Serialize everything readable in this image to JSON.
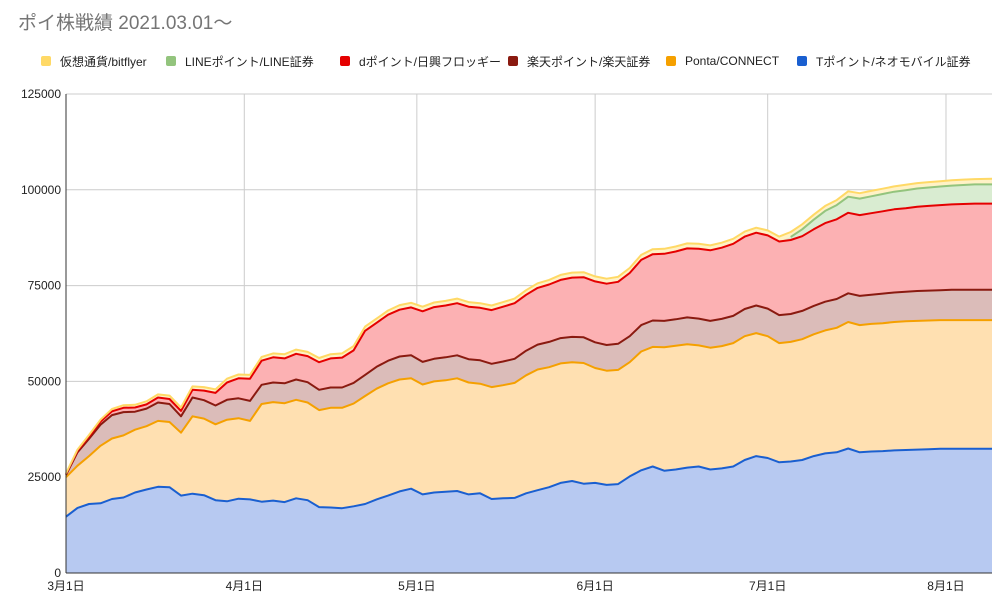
{
  "chart_data": {
    "type": "area",
    "stacked": true,
    "title": "ポイ株戦績 2021.03.01～",
    "xlabel": "",
    "ylabel": "",
    "ylim": [
      0,
      125000
    ],
    "yticks": [
      0,
      25000,
      50000,
      75000,
      100000,
      125000
    ],
    "yticklabels": [
      "0",
      "25000",
      "50000",
      "75000",
      "100000",
      "125000"
    ],
    "xticks": [
      "3月1日",
      "4月1日",
      "5月1日",
      "6月1日",
      "7月1日",
      "8月1日"
    ],
    "x_range_days": [
      0,
      161
    ],
    "x_tick_days": [
      0,
      31,
      61,
      92,
      122,
      153
    ],
    "grid": true,
    "legend_position": "top",
    "x_days": [
      0,
      2,
      4,
      6,
      8,
      10,
      12,
      14,
      16,
      18,
      20,
      22,
      24,
      26,
      28,
      30,
      32,
      34,
      36,
      38,
      40,
      42,
      44,
      46,
      48,
      50,
      52,
      54,
      56,
      58,
      60,
      62,
      64,
      66,
      68,
      70,
      72,
      74,
      76,
      78,
      80,
      82,
      84,
      86,
      88,
      90,
      92,
      94,
      96,
      98,
      100,
      102,
      104,
      106,
      108,
      110,
      112,
      114,
      116,
      118,
      120,
      122,
      124,
      126,
      128,
      130,
      132,
      134,
      136,
      138,
      140,
      142,
      144,
      146,
      148,
      150,
      152,
      154,
      156,
      158,
      161
    ],
    "series": [
      {
        "name": "Tポイント/ネオモバイル証券",
        "color": "#1a5fd0",
        "fill": "#b7c9f1",
        "values": [
          14700,
          17000,
          18000,
          18200,
          19300,
          19700,
          21000,
          21800,
          22500,
          22400,
          20200,
          20700,
          20300,
          19000,
          18700,
          19400,
          19200,
          18600,
          18900,
          18500,
          19500,
          19000,
          17200,
          17100,
          16900,
          17400,
          18000,
          19200,
          20200,
          21300,
          22000,
          20500,
          21000,
          21200,
          21400,
          20500,
          20800,
          19300,
          19500,
          19600,
          20800,
          21600,
          22400,
          23500,
          24000,
          23300,
          23500,
          23000,
          23200,
          25200,
          26800,
          27800,
          26700,
          27000,
          27500,
          27800,
          27000,
          27300,
          27800,
          29500,
          30500,
          30000,
          28900,
          29100,
          29500,
          30500,
          31200,
          31500,
          32500,
          31500,
          31700,
          31800,
          32000,
          32100,
          32200,
          32300,
          32400,
          32400,
          32400,
          32400,
          32400
        ]
      },
      {
        "name": "Ponta/CONNECT",
        "color": "#f5a000",
        "fill": "#ffe0b1",
        "values": [
          10300,
          11000,
          12500,
          15000,
          15800,
          16200,
          16400,
          16500,
          17200,
          17000,
          16400,
          20200,
          20000,
          19800,
          21300,
          21000,
          20500,
          25500,
          25700,
          25800,
          25700,
          25500,
          25300,
          26000,
          26200,
          26800,
          28200,
          28900,
          29300,
          29200,
          28800,
          28700,
          29000,
          29100,
          29400,
          29200,
          28600,
          29200,
          29500,
          30000,
          30800,
          31500,
          31300,
          31200,
          31000,
          31500,
          30000,
          29800,
          29800,
          29800,
          31000,
          31200,
          32200,
          32300,
          32200,
          31600,
          31800,
          31900,
          32200,
          32300,
          32100,
          31800,
          31100,
          31200,
          31500,
          31800,
          32100,
          32500,
          33000,
          33200,
          33300,
          33400,
          33500,
          33600,
          33600,
          33600,
          33600,
          33600,
          33600,
          33600,
          33600
        ]
      },
      {
        "name": "楽天ポイント/楽天証券",
        "color": "#8a1a10",
        "fill": "#dbbcb9",
        "values": [
          600,
          3500,
          4500,
          5500,
          6100,
          6100,
          4700,
          4600,
          4800,
          4700,
          4300,
          4900,
          4800,
          4900,
          5200,
          5200,
          5200,
          5000,
          5100,
          5200,
          5300,
          5300,
          5300,
          5300,
          5300,
          5400,
          5500,
          5700,
          5900,
          6000,
          6000,
          5900,
          5900,
          6000,
          6000,
          6100,
          6100,
          6100,
          6200,
          6300,
          6400,
          6500,
          6600,
          6600,
          6600,
          6700,
          6700,
          6700,
          6800,
          6800,
          6900,
          6900,
          6900,
          6900,
          7000,
          7000,
          7000,
          7100,
          7100,
          7100,
          7200,
          7200,
          7300,
          7300,
          7400,
          7400,
          7500,
          7500,
          7500,
          7600,
          7600,
          7700,
          7700,
          7700,
          7800,
          7800,
          7800,
          7900,
          7900,
          7900,
          7900
        ]
      },
      {
        "name": "dポイント/日興フロッギー",
        "color": "#e50000",
        "fill": "#fcb1b3",
        "values": [
          200,
          400,
          600,
          800,
          1000,
          1100,
          1100,
          1100,
          1300,
          1300,
          1400,
          2000,
          2500,
          3300,
          4500,
          5200,
          5800,
          6300,
          6600,
          6500,
          6700,
          6800,
          7200,
          7600,
          7800,
          8500,
          11500,
          11500,
          12000,
          12200,
          12500,
          13200,
          13500,
          13500,
          13600,
          13700,
          13700,
          14000,
          14300,
          14500,
          14600,
          14800,
          15000,
          15200,
          15500,
          15700,
          15900,
          16000,
          16200,
          16500,
          17000,
          17300,
          17500,
          17700,
          18000,
          18200,
          18400,
          18600,
          18800,
          18900,
          19000,
          19100,
          19200,
          19300,
          19500,
          20000,
          20500,
          20800,
          21000,
          21100,
          21300,
          21500,
          21700,
          21800,
          22000,
          22100,
          22200,
          22300,
          22400,
          22500,
          22500
        ]
      },
      {
        "name": "LINEポイント/LINE証券",
        "color": "#93c47d",
        "fill": "#d9ecd1",
        "values": [
          0,
          0,
          0,
          0,
          0,
          0,
          0,
          0,
          0,
          0,
          0,
          0,
          0,
          0,
          0,
          0,
          0,
          0,
          0,
          0,
          0,
          0,
          0,
          0,
          0,
          0,
          0,
          0,
          0,
          0,
          0,
          0,
          0,
          0,
          0,
          0,
          0,
          0,
          0,
          0,
          0,
          0,
          0,
          0,
          0,
          0,
          0,
          0,
          0,
          0,
          0,
          0,
          0,
          0,
          0,
          0,
          0,
          0,
          0,
          0,
          0,
          0,
          0,
          800,
          1800,
          2500,
          3200,
          3700,
          4200,
          4300,
          4400,
          4500,
          4600,
          4700,
          4750,
          4800,
          4850,
          4900,
          4950,
          5000,
          5000
        ]
      },
      {
        "name": "仮想通貨/bitflyer",
        "color": "#ffd966",
        "fill": "#fff2c6",
        "values": [
          200,
          300,
          400,
          500,
          600,
          700,
          700,
          800,
          800,
          900,
          900,
          900,
          900,
          900,
          1000,
          1000,
          1000,
          1000,
          1000,
          1100,
          1100,
          1100,
          1100,
          1100,
          1100,
          1100,
          1100,
          1100,
          1100,
          1200,
          1200,
          1200,
          1200,
          1200,
          1200,
          1200,
          1200,
          1200,
          1200,
          1200,
          1200,
          1200,
          1200,
          1300,
          1300,
          1300,
          1300,
          1300,
          1300,
          1300,
          1300,
          1300,
          1300,
          1300,
          1300,
          1300,
          1300,
          1300,
          1300,
          1300,
          1300,
          1300,
          1300,
          1300,
          1300,
          1300,
          1300,
          1300,
          1400,
          1400,
          1400,
          1400,
          1400,
          1400,
          1400,
          1400,
          1400,
          1400,
          1400,
          1400,
          1500
        ]
      }
    ]
  }
}
